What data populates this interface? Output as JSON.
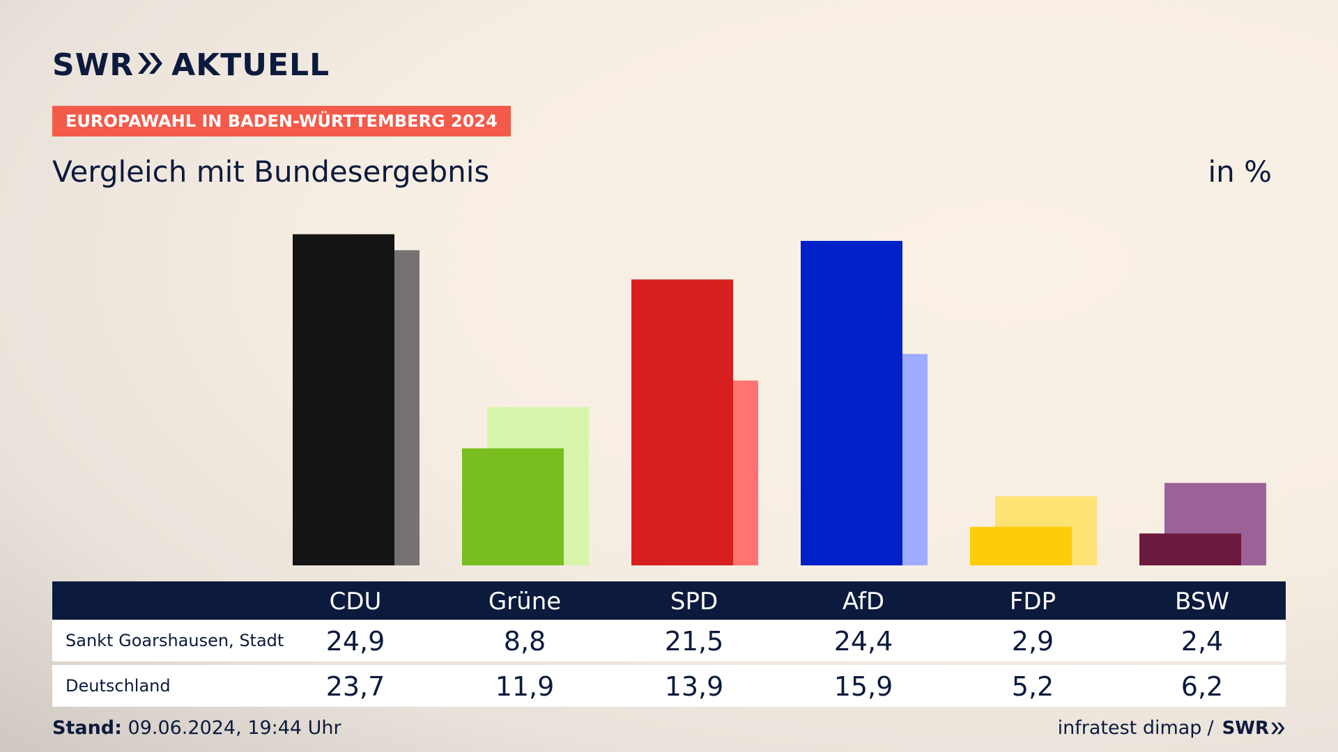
{
  "header": {
    "logo_text_left": "SWR",
    "logo_text_right": "AKTUELL",
    "badge": "EUROPAWAHL IN BADEN-WÜRTTEMBERG 2024",
    "subtitle": "Vergleich mit Bundesergebnis",
    "unit": "in %"
  },
  "colors": {
    "badge": "#f45a4a",
    "navy": "#0c1a3d"
  },
  "chart_data": {
    "type": "bar",
    "categories": [
      "CDU",
      "Grüne",
      "SPD",
      "AfD",
      "FDP",
      "BSW"
    ],
    "series": [
      {
        "name": "Sankt Goarshausen, Stadt",
        "values": [
          24.9,
          8.8,
          21.5,
          24.4,
          2.9,
          2.4
        ],
        "colors": [
          "#141414",
          "#78be1e",
          "#d71f1f",
          "#0020c8",
          "#ffcc0a",
          "#6b1a3e"
        ]
      },
      {
        "name": "Deutschland",
        "values": [
          23.7,
          11.9,
          13.9,
          15.9,
          5.2,
          6.2
        ],
        "colors": [
          "#767272",
          "#d7f5aa",
          "#ff7470",
          "#9dacff",
          "#ffe274",
          "#9c6196"
        ]
      }
    ],
    "ylim": [
      0,
      25.5
    ],
    "legend": "table below chart"
  },
  "table": {
    "headers": [
      "CDU",
      "Grüne",
      "SPD",
      "AfD",
      "FDP",
      "BSW"
    ],
    "rows": [
      {
        "label": "Sankt Goarshausen, Stadt",
        "values": [
          "24,9",
          "8,8",
          "21,5",
          "24,4",
          "2,9",
          "2,4"
        ]
      },
      {
        "label": "Deutschland",
        "values": [
          "23,7",
          "11,9",
          "13,9",
          "15,9",
          "5,2",
          "6,2"
        ]
      }
    ]
  },
  "footer": {
    "stand_label": "Stand:",
    "stand_value": "09.06.2024, 19:44 Uhr",
    "source": "infratest dimap",
    "separator": "/",
    "source_logo": "SWR"
  }
}
